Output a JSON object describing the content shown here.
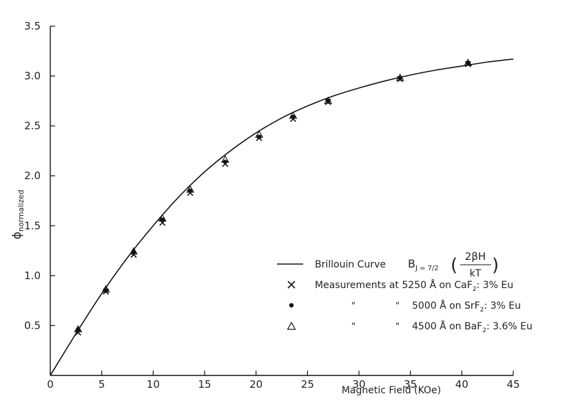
{
  "chart_data": {
    "type": "scatter",
    "xlabel": "Magnetic Field (KOe)",
    "ylabel_symbol": "ϕ",
    "ylabel_subscript": "normalized",
    "xlim": [
      0,
      45
    ],
    "ylim": [
      0,
      3.5
    ],
    "x_ticks": [
      "0",
      "5",
      "10",
      "15",
      "20",
      "25",
      "30",
      "35",
      "40",
      "45"
    ],
    "y_ticks": [
      "0.5",
      "1.0",
      "1.5",
      "2.0",
      "2.5",
      "3.0",
      "3.5"
    ],
    "grid": false,
    "curve": {
      "label": "Brillouin Curve",
      "formula_prefix": "B",
      "formula_subscript": "J = 7/2",
      "formula_numerator": "2βH",
      "formula_denominator": "kT",
      "x": [
        0,
        2.5,
        5,
        7.5,
        10,
        12.5,
        15,
        17.5,
        20,
        22.5,
        25,
        27.5,
        30,
        32.5,
        35,
        37.5,
        40,
        42.5,
        45
      ],
      "y": [
        0,
        0.42,
        0.82,
        1.18,
        1.5,
        1.79,
        2.04,
        2.25,
        2.43,
        2.58,
        2.7,
        2.8,
        2.88,
        2.95,
        3.01,
        3.06,
        3.1,
        3.14,
        3.17
      ]
    },
    "series": [
      {
        "marker": "cross",
        "legend": {
          "prefix": "Measurements at ",
          "wavelength": "5250 Å",
          "mid": " on ",
          "material": "CaF",
          "material_sub": "2",
          "suffix": ": 3% Eu"
        },
        "x": [
          2.7,
          5.4,
          8.1,
          10.9,
          13.6,
          17.0,
          20.3,
          23.6,
          27.0,
          34.0,
          40.6
        ],
        "y": [
          0.43,
          0.84,
          1.21,
          1.53,
          1.83,
          2.12,
          2.38,
          2.57,
          2.74,
          2.97,
          3.12
        ]
      },
      {
        "marker": "dot",
        "legend": {
          "ditto1": "\"",
          "ditto2": "\"",
          "wavelength": "5000 Å",
          "mid": " on ",
          "material": "SrF",
          "material_sub": "2",
          "suffix": ": 3% Eu"
        },
        "x": [
          2.7,
          5.4,
          8.1,
          10.9,
          13.6,
          17.0,
          20.3,
          23.6,
          27.0,
          34.0,
          40.6
        ],
        "y": [
          0.46,
          0.85,
          1.24,
          1.56,
          1.85,
          2.14,
          2.39,
          2.59,
          2.75,
          2.98,
          3.13
        ]
      },
      {
        "marker": "triangle",
        "legend": {
          "ditto1": "\"",
          "ditto2": "\"",
          "wavelength": "4500 Å",
          "mid": " on ",
          "material": "BaF",
          "material_sub": "2",
          "suffix": ": 3.6% Eu"
        },
        "x": [
          2.7,
          5.4,
          8.1,
          10.9,
          13.6,
          17.0,
          20.3,
          23.6,
          27.0,
          34.0,
          40.6
        ],
        "y": [
          0.46,
          0.86,
          1.24,
          1.57,
          1.86,
          2.16,
          2.41,
          2.6,
          2.75,
          2.98,
          3.13
        ]
      }
    ]
  }
}
